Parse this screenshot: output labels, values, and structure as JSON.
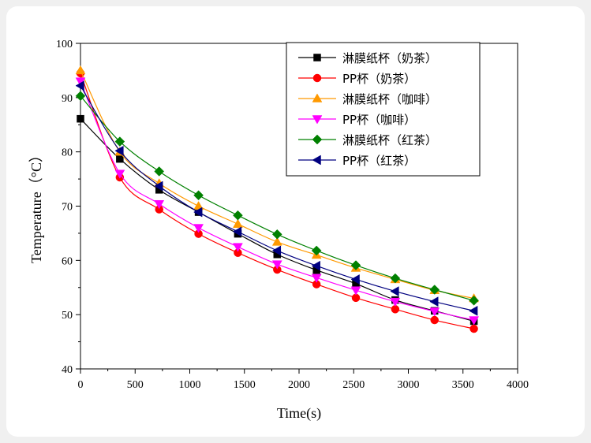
{
  "chart_data": {
    "type": "line",
    "xlabel": "Time(s)",
    "ylabel": "Temperature（°C）",
    "xlim": [
      0,
      4000
    ],
    "ylim": [
      40,
      100
    ],
    "xticks": [
      0,
      500,
      1000,
      1500,
      2000,
      2500,
      3000,
      3500,
      4000
    ],
    "yticks": [
      40,
      50,
      60,
      70,
      80,
      90,
      100
    ],
    "legend_position": "top-right",
    "grid": false,
    "x": [
      0,
      360,
      720,
      1080,
      1440,
      1800,
      2160,
      2520,
      2880,
      3240,
      3600
    ],
    "series": [
      {
        "name": "淋膜纸杯（奶茶）",
        "color": "#000000",
        "marker": "square",
        "values": [
          86.1,
          78.7,
          73.0,
          68.9,
          64.9,
          61.1,
          58.2,
          55.7,
          52.7,
          50.7,
          48.8
        ]
      },
      {
        "name": "PP杯（奶茶）",
        "color": "#ff0000",
        "marker": "circle",
        "values": [
          94.5,
          75.3,
          69.4,
          64.9,
          61.4,
          58.3,
          55.6,
          53.1,
          51.0,
          49.0,
          47.4
        ]
      },
      {
        "name": "淋膜纸杯（咖啡）",
        "color": "#ff9900",
        "marker": "triangle-up",
        "values": [
          95.0,
          80.0,
          74.2,
          70.0,
          66.7,
          63.4,
          61.0,
          58.6,
          56.5,
          54.5,
          53.0
        ]
      },
      {
        "name": "PP杯（咖啡）",
        "color": "#ff00ff",
        "marker": "triangle-down",
        "values": [
          93.0,
          76.0,
          70.4,
          66.0,
          62.5,
          59.3,
          56.8,
          54.5,
          52.4,
          50.6,
          49.0
        ]
      },
      {
        "name": "淋膜纸杯（红茶）",
        "color": "#008000",
        "marker": "diamond",
        "values": [
          90.3,
          81.9,
          76.4,
          72.0,
          68.3,
          64.8,
          61.8,
          59.1,
          56.7,
          54.6,
          52.6
        ]
      },
      {
        "name": "PP杯（红茶）",
        "color": "#000080",
        "marker": "triangle-left",
        "values": [
          92.2,
          80.2,
          73.7,
          68.9,
          65.3,
          61.8,
          59.0,
          56.5,
          54.3,
          52.4,
          50.7
        ]
      }
    ]
  }
}
